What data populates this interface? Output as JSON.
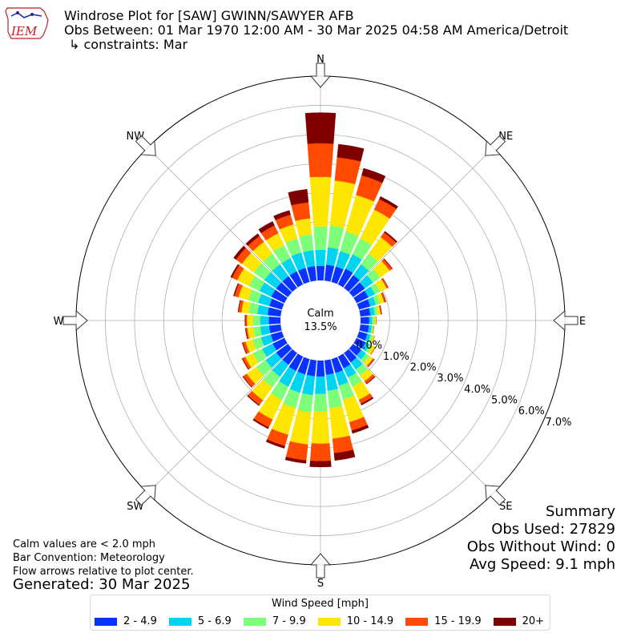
{
  "header": {
    "logo_text": "IEM",
    "title": "Windrose Plot for [SAW] GWINN/SAWYER AFB",
    "subtitle": "Obs Between: 01 Mar 1970 12:00 AM - 30 Mar 2025 04:58 AM America/Detroit",
    "constraints": "↳ constraints: Mar"
  },
  "summary": {
    "heading": "Summary",
    "obs_used": "Obs Used: 27829",
    "obs_without_wind": "Obs Without Wind: 0",
    "avg_speed": "Avg Speed: 9.1 mph"
  },
  "notes": {
    "calm_note": "Calm values are < 2.0 mph",
    "bar_convention": "Bar Convention: Meteorology",
    "flow_note": "Flow arrows relative to plot center.",
    "generated": "Generated: 30 Mar 2025"
  },
  "legend": {
    "title": "Wind Speed [mph]"
  },
  "chart_data": {
    "type": "windrose",
    "calm_label": "Calm",
    "calm_value": "13.5%",
    "compass_labels": [
      "N",
      "NE",
      "E",
      "SE",
      "S",
      "SW",
      "W",
      "NW"
    ],
    "radial_tick_labels": [
      "0.0%",
      "1.0%",
      "2.0%",
      "3.0%",
      "4.0%",
      "5.0%",
      "6.0%",
      "7.0%"
    ],
    "rmax_percent": 7.0,
    "calm_percent_offset": 0.0,
    "grid": true,
    "legend_placement": "bottom",
    "speed_bins": [
      {
        "label": "2 - 4.9",
        "color": "#0a32ff"
      },
      {
        "label": "5 - 6.9",
        "color": "#00d4f0"
      },
      {
        "label": "7 - 9.9",
        "color": "#7dff7a"
      },
      {
        "label": "10 - 14.9",
        "color": "#ffe600"
      },
      {
        "label": "15 - 19.9",
        "color": "#ff4a00"
      },
      {
        "label": "20+",
        "color": "#7f0000"
      }
    ],
    "directions_deg": [
      0,
      10,
      20,
      30,
      40,
      50,
      60,
      70,
      80,
      90,
      100,
      110,
      120,
      130,
      140,
      150,
      160,
      170,
      180,
      190,
      200,
      210,
      220,
      230,
      240,
      250,
      260,
      270,
      280,
      290,
      300,
      310,
      320,
      330,
      340,
      350
    ],
    "series": [
      {
        "name": "2 - 4.9",
        "values": [
          0.5,
          0.55,
          0.55,
          0.6,
          0.55,
          0.5,
          0.45,
          0.4,
          0.35,
          0.3,
          0.3,
          0.3,
          0.35,
          0.35,
          0.4,
          0.45,
          0.5,
          0.5,
          0.55,
          0.55,
          0.55,
          0.55,
          0.5,
          0.5,
          0.45,
          0.4,
          0.4,
          0.4,
          0.45,
          0.45,
          0.5,
          0.5,
          0.5,
          0.5,
          0.5,
          0.5
        ]
      },
      {
        "name": "5 - 6.9",
        "values": [
          0.55,
          0.6,
          0.55,
          0.55,
          0.45,
          0.35,
          0.25,
          0.2,
          0.15,
          0.1,
          0.1,
          0.12,
          0.15,
          0.2,
          0.3,
          0.35,
          0.45,
          0.55,
          0.6,
          0.65,
          0.65,
          0.6,
          0.5,
          0.45,
          0.4,
          0.35,
          0.3,
          0.3,
          0.35,
          0.4,
          0.45,
          0.5,
          0.5,
          0.5,
          0.55,
          0.55
        ]
      },
      {
        "name": "7 - 9.9",
        "values": [
          0.8,
          0.75,
          0.7,
          0.6,
          0.45,
          0.3,
          0.2,
          0.15,
          0.1,
          0.08,
          0.05,
          0.08,
          0.1,
          0.15,
          0.25,
          0.35,
          0.5,
          0.6,
          0.6,
          0.6,
          0.55,
          0.5,
          0.45,
          0.4,
          0.35,
          0.3,
          0.25,
          0.25,
          0.3,
          0.35,
          0.4,
          0.45,
          0.45,
          0.5,
          0.5,
          0.55
        ]
      },
      {
        "name": "10 - 14.9",
        "values": [
          1.7,
          1.55,
          1.3,
          1.1,
          0.7,
          0.4,
          0.25,
          0.15,
          0.1,
          0.05,
          0.02,
          0.05,
          0.1,
          0.15,
          0.25,
          0.5,
          0.8,
          1.05,
          1.1,
          1.1,
          0.95,
          0.75,
          0.55,
          0.4,
          0.3,
          0.25,
          0.2,
          0.2,
          0.25,
          0.35,
          0.45,
          0.5,
          0.5,
          0.45,
          0.5,
          0.55
        ]
      },
      {
        "name": "15 - 19.9",
        "values": [
          1.15,
          0.8,
          0.7,
          0.4,
          0.2,
          0.1,
          0.05,
          0.05,
          0.03,
          0.01,
          0.01,
          0.01,
          0.02,
          0.05,
          0.1,
          0.15,
          0.3,
          0.5,
          0.6,
          0.55,
          0.4,
          0.3,
          0.2,
          0.15,
          0.1,
          0.1,
          0.05,
          0.05,
          0.1,
          0.15,
          0.2,
          0.25,
          0.25,
          0.3,
          0.35,
          0.55
        ]
      },
      {
        "name": "20+",
        "values": [
          1.05,
          0.45,
          0.25,
          0.1,
          0.05,
          0.02,
          0.01,
          0.01,
          0.01,
          0.0,
          0.0,
          0.0,
          0.0,
          0.01,
          0.02,
          0.05,
          0.1,
          0.25,
          0.2,
          0.1,
          0.08,
          0.05,
          0.03,
          0.02,
          0.02,
          0.02,
          0.02,
          0.02,
          0.02,
          0.03,
          0.05,
          0.1,
          0.1,
          0.15,
          0.15,
          0.45
        ]
      }
    ]
  }
}
